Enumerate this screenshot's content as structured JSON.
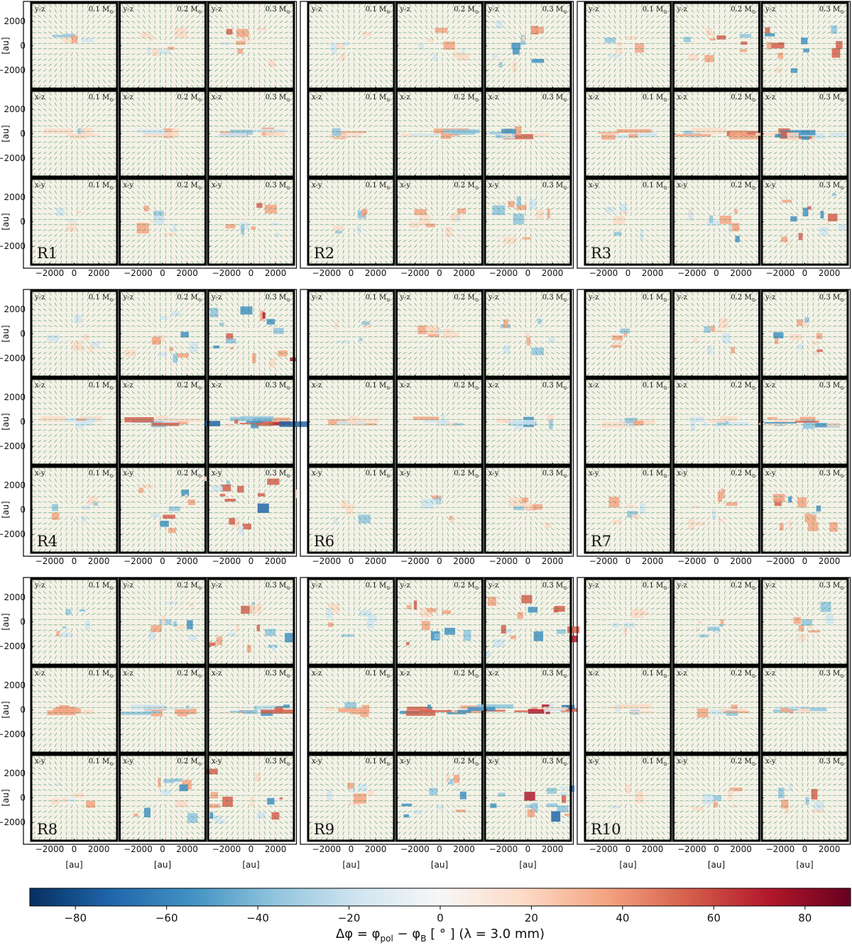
{
  "chart_data": {
    "type": "heatmap",
    "title": "",
    "xlabel": "[au]",
    "ylabel": "[au]",
    "colorbar": {
      "label_main": "Δφ = φ",
      "label_pol": "pol",
      "label_mid": " − φ",
      "label_B": "B",
      "label_tail": " [ ° ] (λ = 3.0 mm)",
      "range": [
        -90,
        90
      ],
      "ticks": [
        -80,
        -60,
        -40,
        -20,
        0,
        20,
        40,
        60,
        80
      ],
      "tick_labels": [
        "−80",
        "−60",
        "−40",
        "−20",
        "0",
        "20",
        "40",
        "60",
        "80"
      ],
      "cmap_stops": [
        "#053061",
        "#2166ac",
        "#4393c3",
        "#92c5de",
        "#d1e5f0",
        "#f7f7f7",
        "#fddbc7",
        "#f4a582",
        "#d6604d",
        "#b2182b",
        "#67001f"
      ]
    },
    "axis_range": [
      -3500,
      3500
    ],
    "tick_values": [
      -2000,
      0,
      2000
    ],
    "tick_labels": [
      "−2000",
      "0",
      "2000"
    ],
    "row_projections": [
      "y-z",
      "x-z",
      "x-y"
    ],
    "column_masses": [
      "0.1 M",
      "0.2 M",
      "0.3 M"
    ],
    "mass_subscript": "⊙",
    "runs": [
      "R1",
      "R2",
      "R3",
      "R4",
      "R6",
      "R7",
      "R8",
      "R9",
      "R10"
    ],
    "vector_color": "#2e8b57",
    "background_tint": "#f4f1e6",
    "x_axis_labels_shown_under": [
      "R8",
      "R9",
      "R10"
    ]
  }
}
